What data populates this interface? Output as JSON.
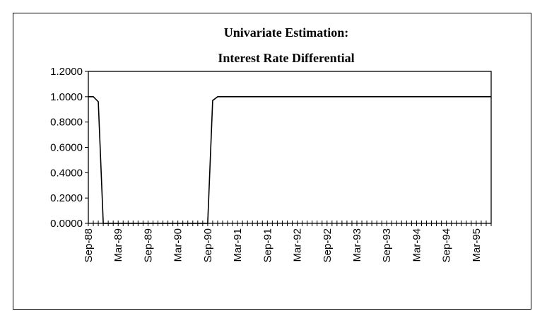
{
  "chart_data": {
    "type": "line",
    "title": "Univariate Estimation:",
    "subtitle": "Interest Rate Differential",
    "categories": [
      "Sep-88",
      null,
      null,
      null,
      null,
      null,
      "Mar-89",
      null,
      null,
      null,
      null,
      null,
      "Sep-89",
      null,
      null,
      null,
      null,
      null,
      "Mar-90",
      null,
      null,
      null,
      null,
      null,
      "Sep-90",
      null,
      null,
      null,
      null,
      null,
      "Mar-91",
      null,
      null,
      null,
      null,
      null,
      "Sep-91",
      null,
      null,
      null,
      null,
      null,
      "Mar-92",
      null,
      null,
      null,
      null,
      null,
      "Sep-92",
      null,
      null,
      null,
      null,
      null,
      "Mar-93",
      null,
      null,
      null,
      null,
      null,
      "Sep-93",
      null,
      null,
      null,
      null,
      null,
      "Mar-94",
      null,
      null,
      null,
      null,
      null,
      "Sep-94",
      null,
      null,
      null,
      null,
      null,
      "Mar-95",
      null,
      null,
      null
    ],
    "values": [
      1,
      1,
      0.96,
      0,
      0,
      0,
      0,
      0,
      0,
      0,
      0,
      0,
      0,
      0,
      0,
      0,
      0,
      0,
      0,
      0,
      0,
      0,
      0,
      0,
      0,
      0.97,
      1,
      1,
      1,
      1,
      1,
      1,
      1,
      1,
      1,
      1,
      1,
      1,
      1,
      1,
      1,
      1,
      1,
      1,
      1,
      1,
      1,
      1,
      1,
      1,
      1,
      1,
      1,
      1,
      1,
      1,
      1,
      1,
      1,
      1,
      1,
      1,
      1,
      1,
      1,
      1,
      1,
      1,
      1,
      1,
      1,
      1,
      1,
      1,
      1,
      1,
      1,
      1,
      1,
      1,
      1,
      1
    ],
    "color": "#000000",
    "ylim": [
      0,
      1.2
    ],
    "yticks": [
      {
        "value": 0,
        "label": "0.0000"
      },
      {
        "value": 0.2,
        "label": "0.2000"
      },
      {
        "value": 0.4,
        "label": "0.4000"
      },
      {
        "value": 0.6,
        "label": "0.6000"
      },
      {
        "value": 0.8,
        "label": "0.8000"
      },
      {
        "value": 1,
        "label": "1.0000"
      },
      {
        "value": 1.2,
        "label": "1.2000"
      }
    ],
    "grid": false
  }
}
